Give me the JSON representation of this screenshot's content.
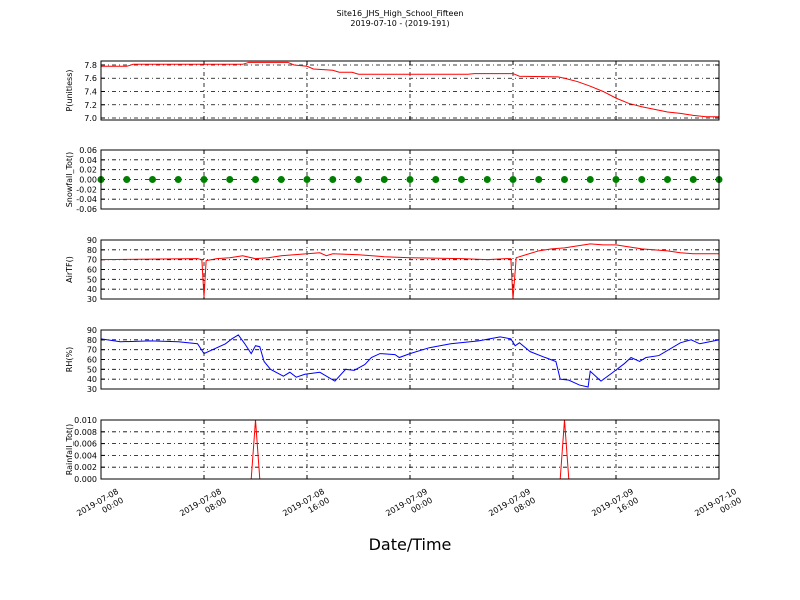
{
  "chart_data": [
    {
      "type": "line",
      "title": "Site16_JHS_High_School_Fifteen",
      "subtitle": "2019-07-10 - (2019-191)",
      "ylabel": "P(unitless)",
      "xlim": [
        "2019-07-08 00:00",
        "2019-07-10 00:00"
      ],
      "ylim": [
        6.97,
        7.86
      ],
      "yticks": [
        {
          "value": 7,
          "label": "7.0"
        },
        7.2,
        7.4,
        7.6,
        7.8
      ],
      "grid": true,
      "x": [
        "2019-07-08 00:00",
        "2019-07-08 02:00",
        "2019-07-08 02:30",
        "2019-07-08 11:00",
        "2019-07-08 11:30",
        "2019-07-08 14:30",
        "2019-07-08 15:00",
        "2019-07-08 16:00",
        "2019-07-08 16:30",
        "2019-07-08 18:00",
        "2019-07-08 18:30",
        "2019-07-08 19:30",
        "2019-07-08 20:00",
        "2019-07-09 04:30",
        "2019-07-09 05:00",
        "2019-07-09 08:00",
        "2019-07-09 08:30",
        "2019-07-09 11:30",
        "2019-07-09 12:00",
        "2019-07-09 13:00",
        "2019-07-09 14:00",
        "2019-07-09 15:00",
        "2019-07-09 16:00",
        "2019-07-09 17:00",
        "2019-07-09 18:00",
        "2019-07-09 19:00",
        "2019-07-09 20:00",
        "2019-07-09 21:00",
        "2019-07-09 22:00",
        "2019-07-09 23:00",
        "2019-07-10 00:00"
      ],
      "series": [
        {
          "color": "#ff0000",
          "values": [
            7.78,
            7.78,
            7.81,
            7.81,
            7.84,
            7.84,
            7.8,
            7.78,
            7.74,
            7.72,
            7.69,
            7.69,
            7.66,
            7.66,
            7.67,
            7.67,
            7.63,
            7.62,
            7.6,
            7.55,
            7.48,
            7.4,
            7.3,
            7.22,
            7.17,
            7.13,
            7.09,
            7.07,
            7.04,
            7.02,
            7.02
          ]
        }
      ]
    },
    {
      "type": "scatter",
      "ylabel": "Snowfall_Tot()",
      "xlim": [
        "2019-07-08 00:00",
        "2019-07-10 00:00"
      ],
      "ylim": [
        -0.06,
        0.06
      ],
      "yticks": [
        {
          "value": 0.06,
          "label": "0.06"
        },
        0.04,
        0.02,
        {
          "value": 0,
          "label": "0.00"
        },
        -0.02,
        -0.04,
        -0.06
      ],
      "grid": true,
      "x": [
        "2019-07-08 00:00",
        "2019-07-08 02:00",
        "2019-07-08 04:00",
        "2019-07-08 06:00",
        "2019-07-08 08:00",
        "2019-07-08 10:00",
        "2019-07-08 12:00",
        "2019-07-08 14:00",
        "2019-07-08 16:00",
        "2019-07-08 18:00",
        "2019-07-08 20:00",
        "2019-07-08 22:00",
        "2019-07-09 00:00",
        "2019-07-09 02:00",
        "2019-07-09 04:00",
        "2019-07-09 06:00",
        "2019-07-09 08:00",
        "2019-07-09 10:00",
        "2019-07-09 12:00",
        "2019-07-09 14:00",
        "2019-07-09 16:00",
        "2019-07-09 18:00",
        "2019-07-09 20:00",
        "2019-07-09 22:00",
        "2019-07-10 00:00"
      ],
      "series": [
        {
          "color": "#008000",
          "values": [
            0,
            0,
            0,
            0,
            0,
            0,
            0,
            0,
            0,
            0,
            0,
            0,
            0,
            0,
            0,
            0,
            0,
            0,
            0,
            0,
            0,
            0,
            0,
            0,
            0
          ]
        }
      ]
    },
    {
      "type": "line",
      "ylabel": "AirTF()",
      "xlim": [
        "2019-07-08 00:00",
        "2019-07-10 00:00"
      ],
      "ylim": [
        30,
        90
      ],
      "yticks": [
        30,
        40,
        50,
        60,
        70,
        80,
        90
      ],
      "grid": true,
      "x": [
        "2019-07-08 00:00",
        "2019-07-08 07:30",
        "2019-07-08 07:50",
        "2019-07-08 08:00",
        "2019-07-08 08:10",
        "2019-07-08 09:00",
        "2019-07-08 10:00",
        "2019-07-08 11:00",
        "2019-07-08 12:00",
        "2019-07-08 13:00",
        "2019-07-08 14:00",
        "2019-07-08 15:00",
        "2019-07-08 16:00",
        "2019-07-08 17:00",
        "2019-07-08 17:30",
        "2019-07-08 18:00",
        "2019-07-08 20:00",
        "2019-07-08 22:00",
        "2019-07-09 00:00",
        "2019-07-09 04:00",
        "2019-07-09 06:00",
        "2019-07-09 07:30",
        "2019-07-09 07:50",
        "2019-07-09 08:00",
        "2019-07-09 08:15",
        "2019-07-09 09:00",
        "2019-07-09 10:00",
        "2019-07-09 11:00",
        "2019-07-09 12:00",
        "2019-07-09 13:00",
        "2019-07-09 14:00",
        "2019-07-09 15:00",
        "2019-07-09 16:00",
        "2019-07-09 17:00",
        "2019-07-09 18:00",
        "2019-07-09 19:00",
        "2019-07-09 20:00",
        "2019-07-09 21:00",
        "2019-07-09 22:00",
        "2019-07-10 00:00"
      ],
      "series": [
        {
          "color": "#ff0000",
          "values": [
            70,
            71,
            70,
            32,
            69,
            71,
            72,
            74,
            71,
            72,
            74,
            75,
            76,
            77,
            74,
            76,
            75,
            73,
            72,
            71,
            70,
            71,
            71,
            30,
            72,
            75,
            79,
            81,
            82,
            84,
            86,
            85,
            85,
            83,
            81,
            80,
            79,
            77,
            76,
            76
          ]
        }
      ]
    },
    {
      "type": "line",
      "ylabel": "RH(%)",
      "xlim": [
        "2019-07-08 00:00",
        "2019-07-10 00:00"
      ],
      "ylim": [
        30,
        90
      ],
      "yticks": [
        30,
        40,
        50,
        60,
        70,
        80,
        90
      ],
      "grid": true,
      "x": [
        "2019-07-08 00:00",
        "2019-07-08 01:30",
        "2019-07-08 03:50",
        "2019-07-08 06:00",
        "2019-07-08 07:30",
        "2019-07-08 08:00",
        "2019-07-08 09:40",
        "2019-07-08 10:10",
        "2019-07-08 10:40",
        "2019-07-08 11:10",
        "2019-07-08 11:40",
        "2019-07-08 12:00",
        "2019-07-08 12:20",
        "2019-07-08 12:40",
        "2019-07-08 13:10",
        "2019-07-08 14:10",
        "2019-07-08 14:40",
        "2019-07-08 15:10",
        "2019-07-08 15:50",
        "2019-07-08 17:00",
        "2019-07-08 18:10",
        "2019-07-08 19:00",
        "2019-07-08 19:40",
        "2019-07-08 20:30",
        "2019-07-08 21:00",
        "2019-07-08 21:40",
        "2019-07-08 22:50",
        "2019-07-08 23:10",
        "2019-07-09 00:00",
        "2019-07-09 01:30",
        "2019-07-09 03:10",
        "2019-07-09 05:20",
        "2019-07-09 07:00",
        "2019-07-09 07:50",
        "2019-07-09 08:10",
        "2019-07-09 08:30",
        "2019-07-09 09:20",
        "2019-07-09 10:30",
        "2019-07-09 11:20",
        "2019-07-09 11:40",
        "2019-07-09 12:20",
        "2019-07-09 13:10",
        "2019-07-09 13:50",
        "2019-07-09 14:00",
        "2019-07-09 14:50",
        "2019-07-09 15:40",
        "2019-07-09 16:40",
        "2019-07-09 17:10",
        "2019-07-09 17:50",
        "2019-07-09 18:20",
        "2019-07-09 19:20",
        "2019-07-09 21:00",
        "2019-07-09 21:50",
        "2019-07-09 22:30",
        "2019-07-10 00:00"
      ],
      "series": [
        {
          "color": "#0000ff",
          "values": [
            81,
            78,
            79,
            78,
            76,
            66,
            76,
            81,
            85,
            76,
            66,
            74,
            73,
            58,
            50,
            43,
            47,
            42,
            45,
            47,
            38,
            50,
            49,
            55,
            62,
            66,
            65,
            62,
            66,
            72,
            76,
            79,
            83,
            81,
            74,
            77,
            68,
            62,
            58,
            40,
            39,
            34,
            32,
            48,
            38,
            46,
            56,
            62,
            58,
            62,
            64,
            77,
            80,
            76,
            80
          ]
        }
      ]
    },
    {
      "type": "line",
      "ylabel": "Rainfall_Tot()",
      "xlabel": "Date/Time",
      "xlim": [
        "2019-07-08 00:00",
        "2019-07-10 00:00"
      ],
      "ylim": [
        0,
        0.01
      ],
      "xticks": [
        "2019-07-08 00:00",
        "2019-07-08 08:00",
        "2019-07-08 16:00",
        "2019-07-09 00:00",
        "2019-07-09 08:00",
        "2019-07-09 16:00",
        "2019-07-10 00:00"
      ],
      "yticks": [
        {
          "value": 0,
          "label": "0.000"
        },
        {
          "value": 0.002,
          "label": "0.002"
        },
        {
          "value": 0.004,
          "label": "0.004"
        },
        {
          "value": 0.006,
          "label": "0.006"
        },
        {
          "value": 0.008,
          "label": "0.008"
        },
        {
          "value": 0.01,
          "label": "0.010"
        }
      ],
      "grid": true,
      "x": [
        "2019-07-08 00:00",
        "2019-07-08 11:40",
        "2019-07-08 12:00",
        "2019-07-08 12:20",
        "2019-07-09 11:40",
        "2019-07-09 12:00",
        "2019-07-09 12:20",
        "2019-07-10 00:00"
      ],
      "series": [
        {
          "color": "#ff0000",
          "values": [
            0,
            0,
            0.01,
            0,
            0,
            0.01,
            0,
            0
          ]
        }
      ]
    }
  ]
}
